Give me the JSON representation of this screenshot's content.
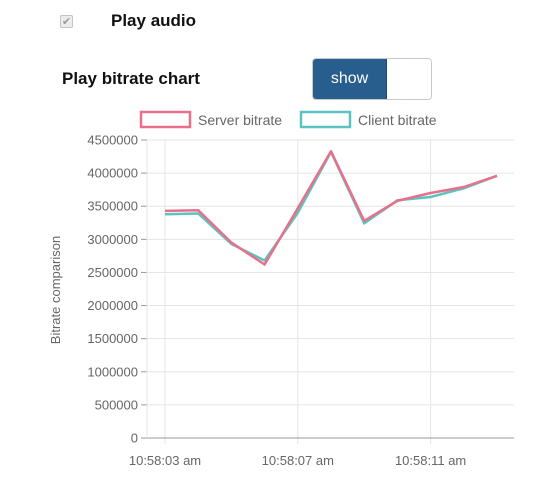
{
  "audio": {
    "checked": true,
    "label": "Play audio"
  },
  "chart_section": {
    "label": "Play bitrate chart",
    "toggle_label": "show"
  },
  "icons": {
    "checkbox": "check-icon"
  },
  "colors": {
    "server": "#e8708a",
    "client": "#5cc4c0",
    "toggle_on": "#285e8e",
    "grid": "#e5e5e5",
    "axis": "#999999",
    "text": "#666666"
  },
  "chart_data": {
    "type": "line",
    "ylabel": "Bitrate comparison",
    "xlabel": "",
    "ylim": [
      0,
      4500000
    ],
    "yticks": [
      0,
      500000,
      1000000,
      1500000,
      2000000,
      2500000,
      3000000,
      3500000,
      4000000,
      4500000
    ],
    "xtick_labels": [
      "10:58:03 am",
      "10:58:07 am",
      "10:58:11 am"
    ],
    "series": [
      {
        "name": "Server bitrate",
        "values": [
          3430000,
          3440000,
          2950000,
          2620000,
          3470000,
          4330000,
          3280000,
          3580000,
          3700000,
          3790000,
          3960000
        ]
      },
      {
        "name": "Client bitrate",
        "values": [
          3380000,
          3390000,
          2930000,
          2680000,
          3400000,
          4320000,
          3240000,
          3590000,
          3640000,
          3770000,
          3960000
        ]
      }
    ]
  }
}
